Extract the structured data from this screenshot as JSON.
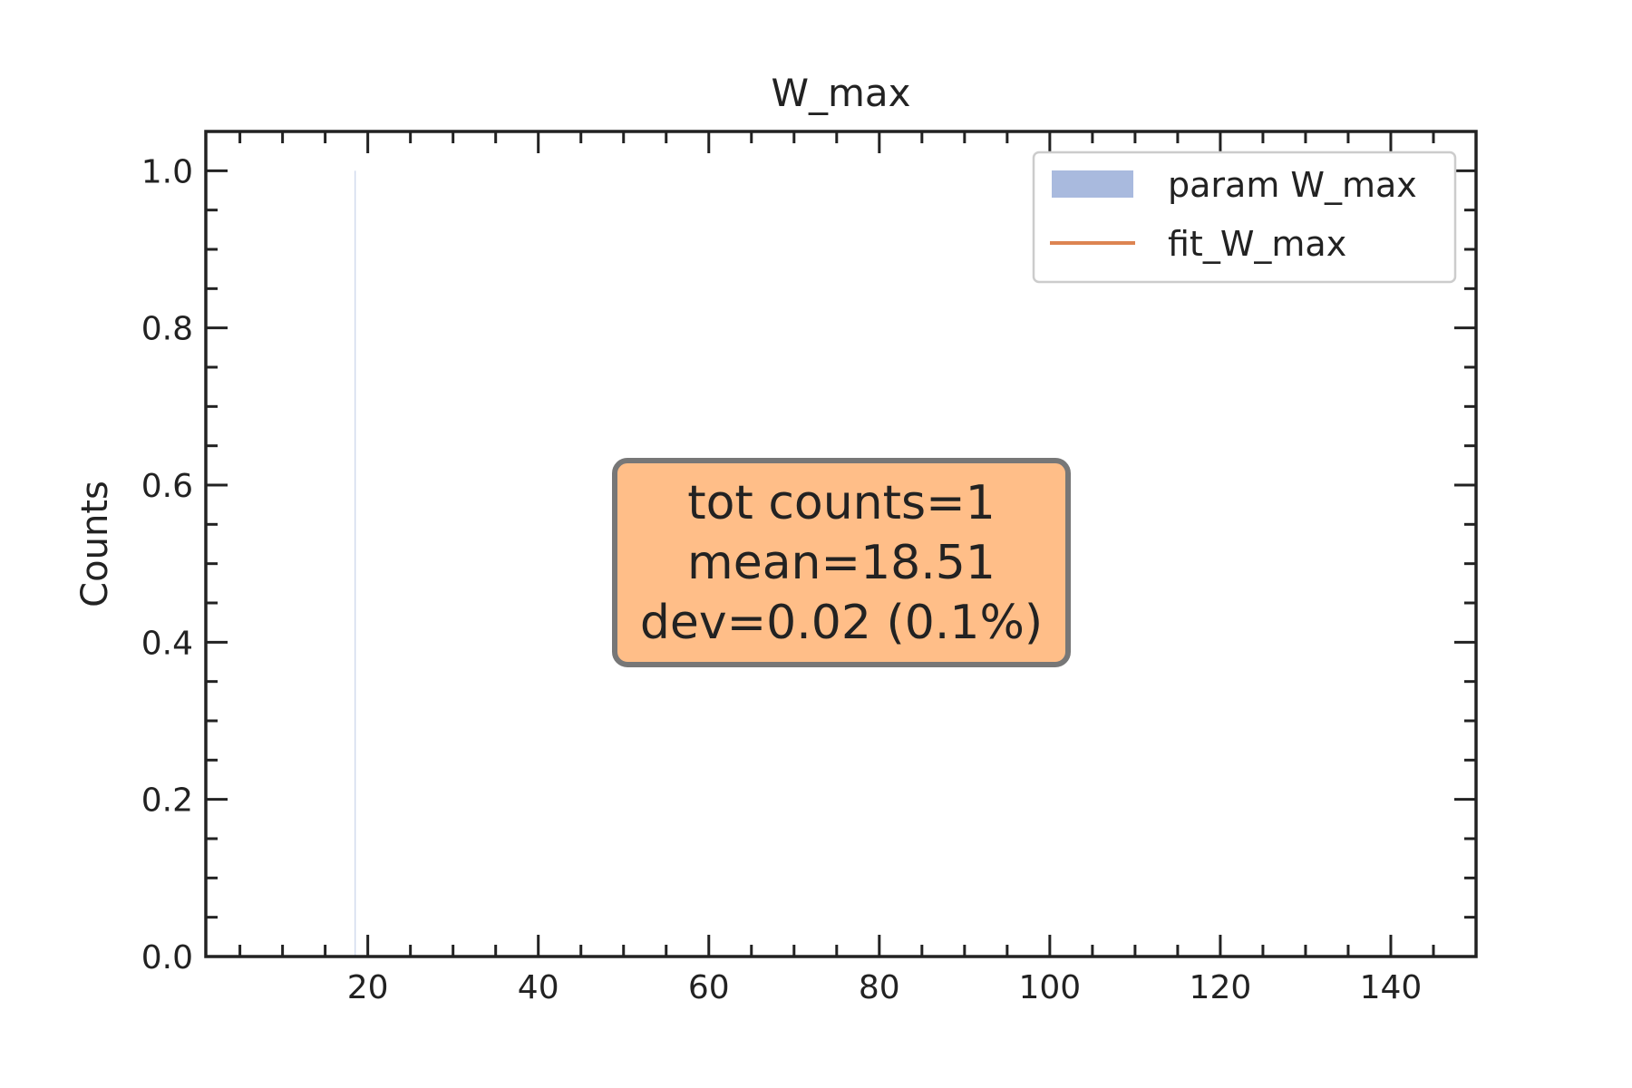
{
  "chart_data": {
    "type": "bar",
    "title": "W_max",
    "xlabel": "",
    "ylabel": "Counts",
    "xlim": [
      1,
      150
    ],
    "ylim": [
      0,
      1.05
    ],
    "xticks": [
      20,
      40,
      60,
      80,
      100,
      120,
      140
    ],
    "xtick_labels": [
      "20",
      "40",
      "60",
      "80",
      "100",
      "120",
      "140"
    ],
    "yticks": [
      0.0,
      0.2,
      0.4,
      0.6,
      0.8,
      1.0
    ],
    "ytick_labels": [
      "0.0",
      "0.2",
      "0.4",
      "0.6",
      "0.8",
      "1.0"
    ],
    "grid": false,
    "legend_position": "top-right",
    "series": [
      {
        "name": "param W_max",
        "kind": "histogram",
        "color": "#a4b6dc",
        "bins": [
          {
            "x": 18.51,
            "count": 1
          }
        ]
      },
      {
        "name": "fit_W_max",
        "kind": "line",
        "color": "#dd8452",
        "points": []
      }
    ],
    "stats_box": {
      "lines": [
        "tot counts=1",
        "mean=18.51",
        "dev=0.02 (0.1%)"
      ],
      "fill": "#ffbe88",
      "edge": "#777777"
    }
  }
}
